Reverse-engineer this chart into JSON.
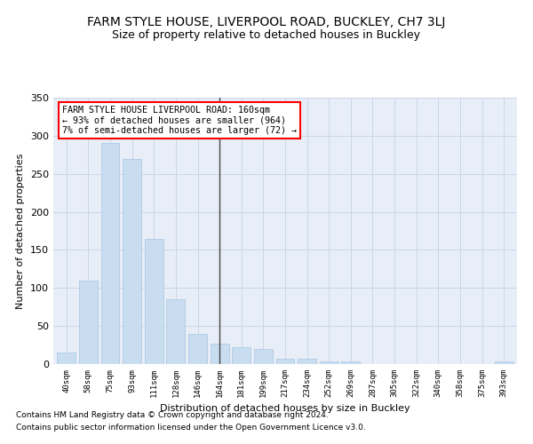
{
  "title": "FARM STYLE HOUSE, LIVERPOOL ROAD, BUCKLEY, CH7 3LJ",
  "subtitle": "Size of property relative to detached houses in Buckley",
  "xlabel": "Distribution of detached houses by size in Buckley",
  "ylabel": "Number of detached properties",
  "footnote1": "Contains HM Land Registry data © Crown copyright and database right 2024.",
  "footnote2": "Contains public sector information licensed under the Open Government Licence v3.0.",
  "annotation_line1": "FARM STYLE HOUSE LIVERPOOL ROAD: 160sqm",
  "annotation_line2": "← 93% of detached houses are smaller (964)",
  "annotation_line3": "7% of semi-detached houses are larger (72) →",
  "bar_color": "#c9ddf0",
  "bar_edge_color": "#a8c4e0",
  "vline_x_index": 7,
  "vline_color": "#444444",
  "categories": [
    "40sqm",
    "58sqm",
    "75sqm",
    "93sqm",
    "111sqm",
    "128sqm",
    "146sqm",
    "164sqm",
    "181sqm",
    "199sqm",
    "217sqm",
    "234sqm",
    "252sqm",
    "269sqm",
    "287sqm",
    "305sqm",
    "322sqm",
    "340sqm",
    "358sqm",
    "375sqm",
    "393sqm"
  ],
  "values": [
    15,
    110,
    290,
    270,
    165,
    85,
    40,
    27,
    22,
    20,
    7,
    7,
    4,
    4,
    0,
    0,
    0,
    0,
    0,
    0,
    3
  ],
  "ylim": [
    0,
    350
  ],
  "yticks": [
    0,
    50,
    100,
    150,
    200,
    250,
    300,
    350
  ],
  "grid_color": "#ccd5e8",
  "background_color": "#e8eef8",
  "title_fontsize": 10,
  "subtitle_fontsize": 9,
  "annotation_box_color": "white",
  "annotation_box_edge_color": "red",
  "footnote_fontsize": 6.5
}
